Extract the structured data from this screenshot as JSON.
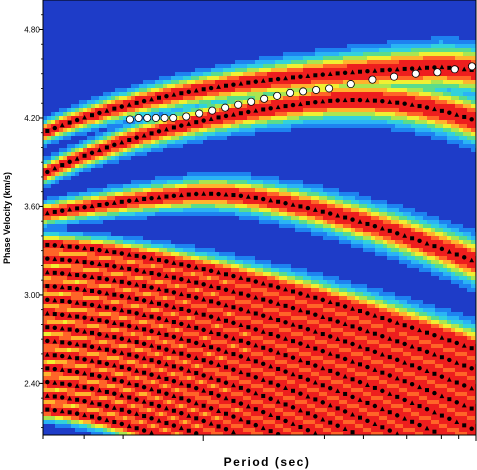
{
  "chart_data": {
    "type": "heatmap",
    "title": "",
    "xlabel": "Period (sec)",
    "ylabel": "Phase Velocity (km/s)",
    "ylim": [
      2.05,
      5.0
    ],
    "yticks": [
      {
        "value": 2.4,
        "label": "2.40"
      },
      {
        "value": 3.0,
        "label": "3.00"
      },
      {
        "value": 3.6,
        "label": "3.60"
      },
      {
        "value": 4.2,
        "label": "4.20"
      },
      {
        "value": 4.8,
        "label": "4.80"
      }
    ],
    "xtick_labels_visible": false,
    "colormap": [
      "#1e3cc8",
      "#1e82f0",
      "#2ab4f5",
      "#32d2dc",
      "#5adc8c",
      "#aae650",
      "#f0f032",
      "#ffb42d",
      "#ff6428",
      "#ee1e1e"
    ],
    "ridge_color": "#ee1e1e",
    "symbol_colors": {
      "filled": "#000000",
      "open_fill": "#ffffff",
      "open_stroke": "#000000"
    },
    "open_circle_series": {
      "x": [
        0.21,
        0.23,
        0.25,
        0.27,
        0.29,
        0.31,
        0.34,
        0.37,
        0.4,
        0.43,
        0.46,
        0.49,
        0.52,
        0.55,
        0.58,
        0.61,
        0.64,
        0.67,
        0.72,
        0.77,
        0.82,
        0.87,
        0.92,
        0.96,
        1.0
      ],
      "y": [
        4.19,
        4.2,
        4.2,
        4.2,
        4.2,
        4.2,
        4.21,
        4.23,
        4.25,
        4.27,
        4.29,
        4.31,
        4.33,
        4.35,
        4.37,
        4.38,
        4.39,
        4.4,
        4.43,
        4.46,
        4.48,
        4.5,
        4.51,
        4.53,
        4.55
      ]
    }
  }
}
